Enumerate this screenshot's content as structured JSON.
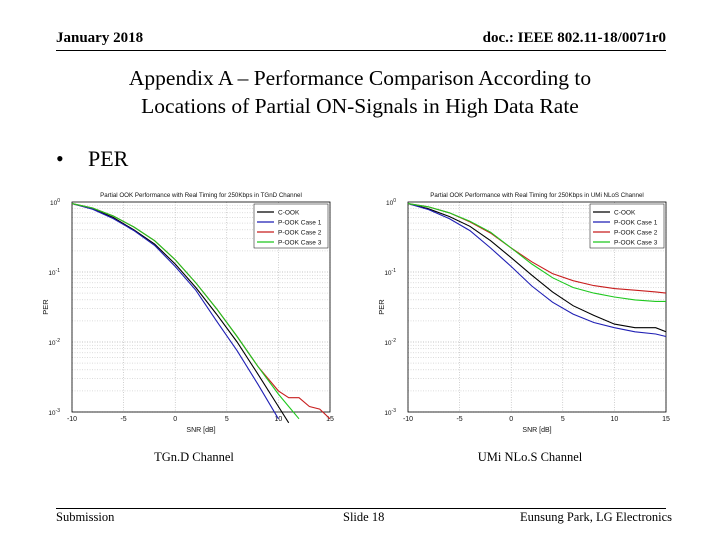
{
  "header": {
    "date": "January 2018",
    "doc_id": "doc.: IEEE 802.11-18/0071r0"
  },
  "title": {
    "line1": "Appendix A – Performance Comparison According to",
    "line2": "Locations of Partial ON-Signals in High Data Rate"
  },
  "bullet": {
    "marker": "•",
    "text": "PER"
  },
  "footer": {
    "left": "Submission",
    "center": "Slide 18",
    "right": "Eunsung Park, LG Electronics"
  },
  "chart_data": [
    {
      "type": "line",
      "title": "Partial OOK Performance with Real Timing for 250Kbps in TGnD Channel",
      "xlabel": "SNR [dB]",
      "ylabel": "PER",
      "caption": "TGn.D Channel",
      "xlim": [
        -10,
        15
      ],
      "ylim_log10": [
        -3,
        0
      ],
      "yscale": "log",
      "grid": true,
      "legend_position": "top-right",
      "xticks": [
        "-10",
        "-5",
        "0",
        "5",
        "10",
        "15"
      ],
      "yticks": [
        "10^0",
        "10^-1",
        "10^-2",
        "10^-3"
      ],
      "x": [
        -10,
        -8,
        -6,
        -4,
        -2,
        0,
        2,
        4,
        6,
        8,
        10,
        11,
        12,
        13,
        14,
        15
      ],
      "series": [
        {
          "name": "C-OOK",
          "color": "#000000",
          "values": [
            0.95,
            0.8,
            0.6,
            0.4,
            0.25,
            0.13,
            0.06,
            0.025,
            0.01,
            0.0035,
            0.0012,
            0.0007,
            null,
            null,
            null,
            null
          ]
        },
        {
          "name": "P-OOK Case 1",
          "color": "#1f1fb4",
          "values": [
            0.95,
            0.79,
            0.58,
            0.39,
            0.24,
            0.12,
            0.055,
            0.02,
            0.0075,
            0.0025,
            0.0008,
            null,
            null,
            null,
            null,
            null
          ]
        },
        {
          "name": "P-OOK Case 2",
          "color": "#c81e1e",
          "values": [
            0.95,
            0.82,
            0.63,
            0.44,
            0.28,
            0.15,
            0.07,
            0.03,
            0.012,
            0.0045,
            0.002,
            0.0016,
            0.0016,
            0.0012,
            0.0011,
            0.0008
          ]
        },
        {
          "name": "P-OOK Case 3",
          "color": "#1ec81e",
          "values": [
            0.95,
            0.82,
            0.63,
            0.44,
            0.28,
            0.15,
            0.07,
            0.03,
            0.012,
            0.0045,
            0.0018,
            0.0012,
            0.0008,
            null,
            null,
            null
          ]
        }
      ]
    },
    {
      "type": "line",
      "title": "Partial OOK Performance with Real Timing for 250Kbps in UMi NLoS Channel",
      "xlabel": "SNR [dB]",
      "ylabel": "PER",
      "caption": "UMi NLo.S Channel",
      "xlim": [
        -10,
        15
      ],
      "ylim_log10": [
        -3,
        0
      ],
      "yscale": "log",
      "grid": true,
      "legend_position": "top-right",
      "xticks": [
        "-10",
        "-5",
        "0",
        "5",
        "10",
        "15"
      ],
      "yticks": [
        "10^0",
        "10^-1",
        "10^-2",
        "10^-3"
      ],
      "x": [
        -10,
        -8,
        -6,
        -4,
        -2,
        0,
        2,
        4,
        6,
        8,
        10,
        12,
        14,
        15
      ],
      "series": [
        {
          "name": "C-OOK",
          "color": "#000000",
          "values": [
            0.95,
            0.8,
            0.62,
            0.45,
            0.28,
            0.16,
            0.09,
            0.052,
            0.033,
            0.024,
            0.018,
            0.016,
            0.016,
            0.014
          ]
        },
        {
          "name": "P-OOK Case 1",
          "color": "#1f1fb4",
          "values": [
            0.95,
            0.78,
            0.58,
            0.39,
            0.22,
            0.12,
            0.063,
            0.037,
            0.025,
            0.019,
            0.016,
            0.014,
            0.013,
            0.012
          ]
        },
        {
          "name": "P-OOK Case 2",
          "color": "#c81e1e",
          "values": [
            0.95,
            0.85,
            0.7,
            0.52,
            0.36,
            0.22,
            0.14,
            0.095,
            0.075,
            0.064,
            0.058,
            0.055,
            0.052,
            0.05
          ]
        },
        {
          "name": "P-OOK Case 3",
          "color": "#1ec81e",
          "values": [
            0.95,
            0.85,
            0.7,
            0.53,
            0.37,
            0.22,
            0.13,
            0.083,
            0.06,
            0.05,
            0.044,
            0.04,
            0.038,
            0.038
          ]
        }
      ]
    }
  ]
}
